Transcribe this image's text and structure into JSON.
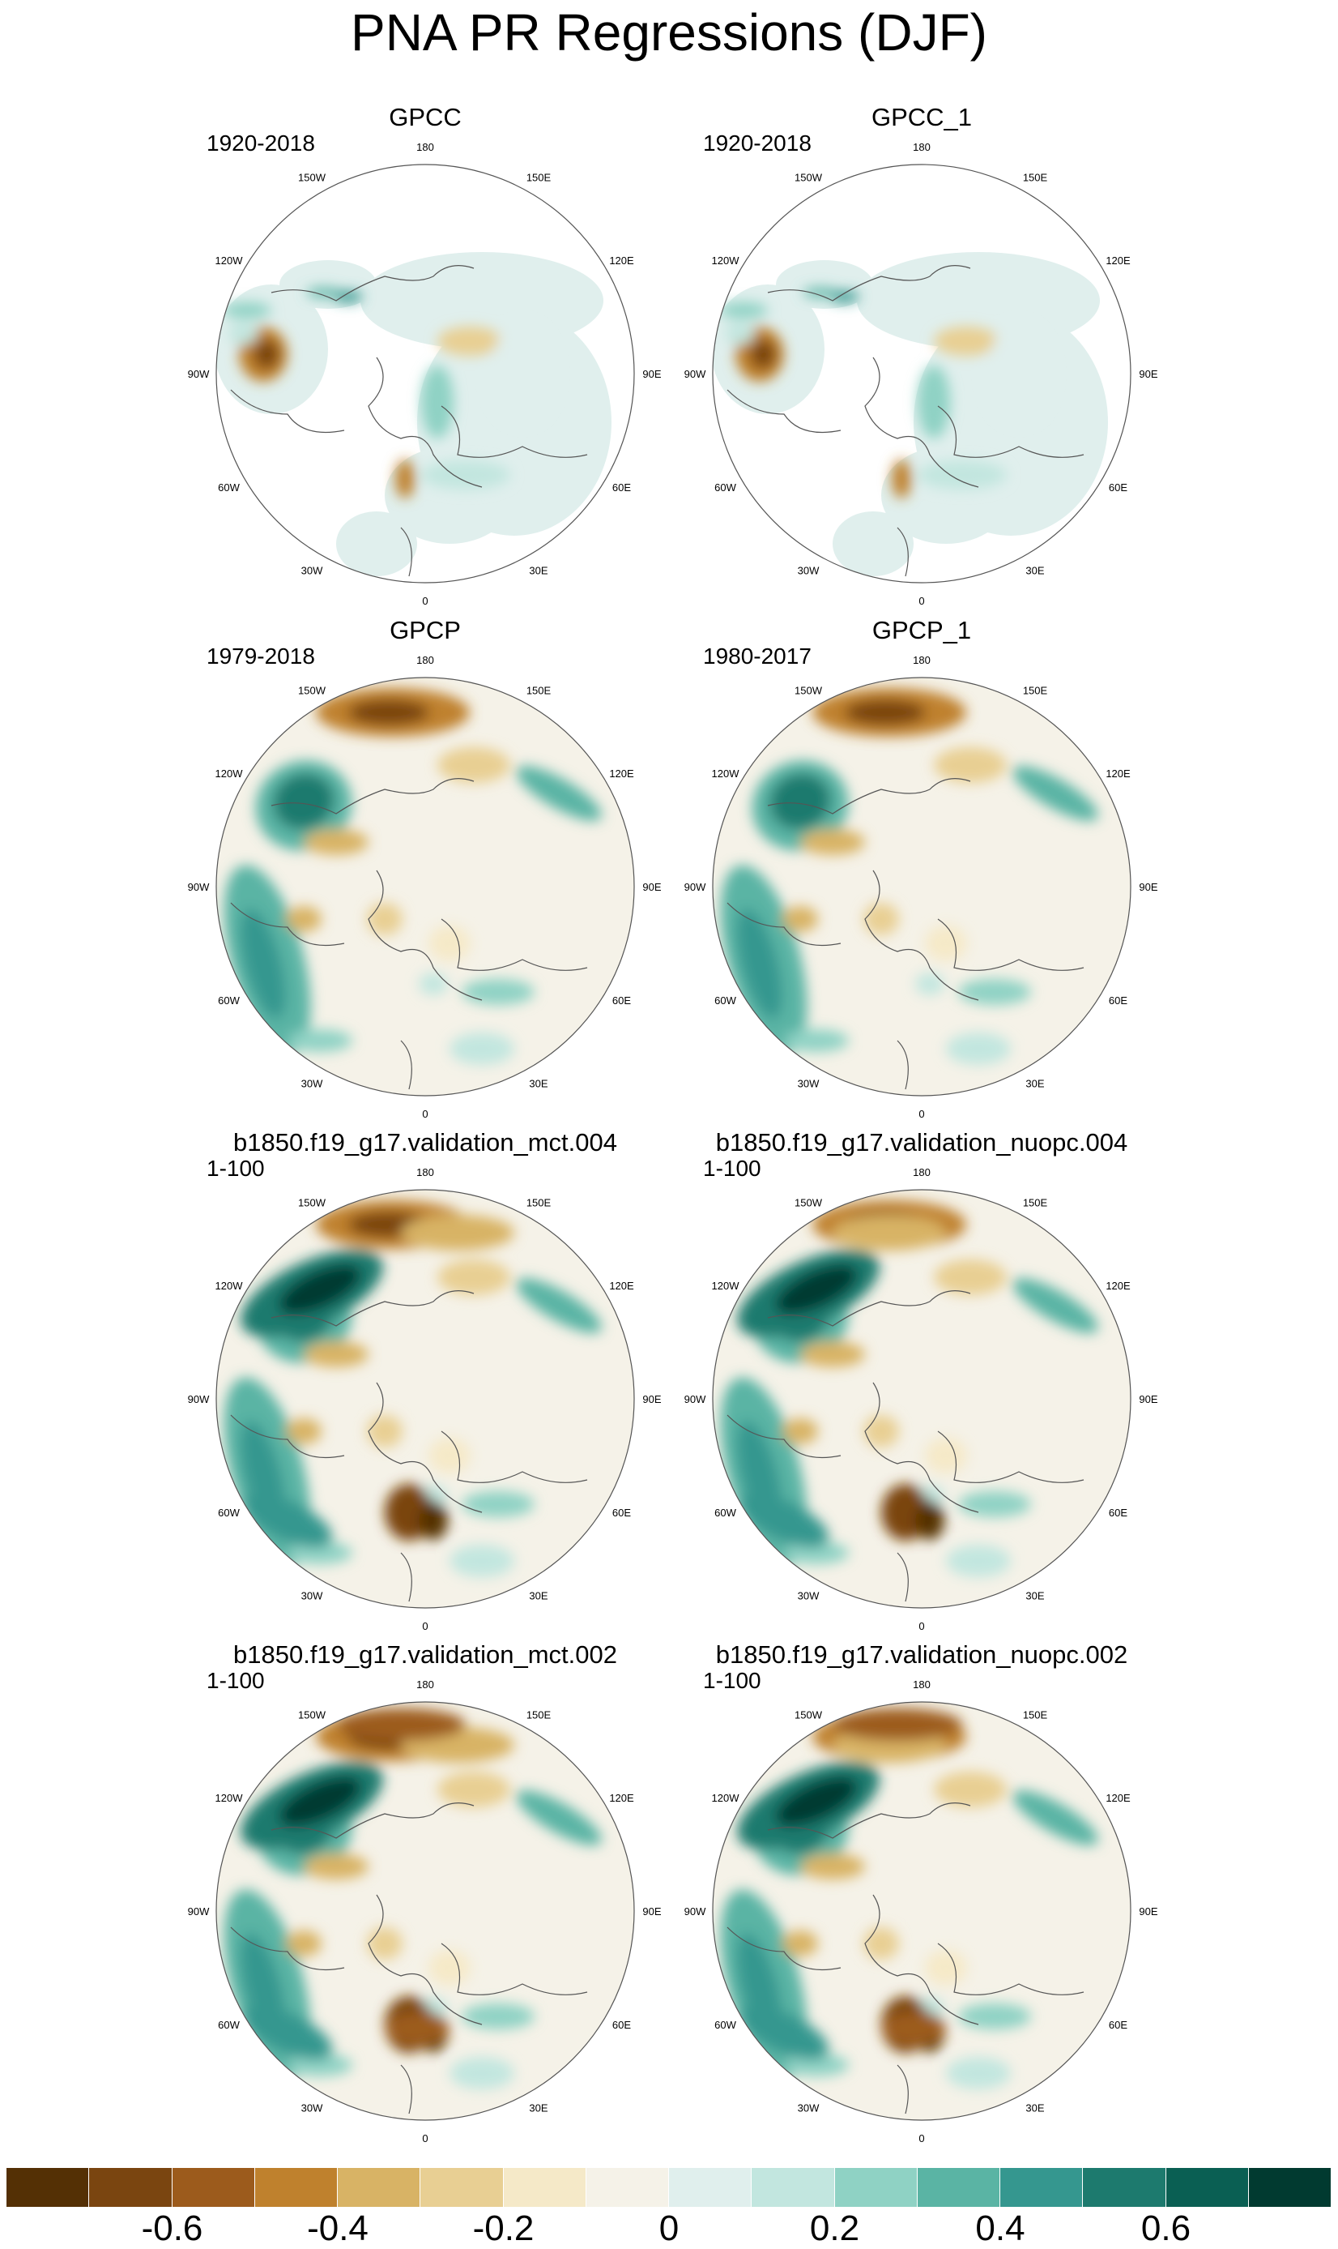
{
  "title": "PNA PR Regressions (DJF)",
  "lon_labels": [
    "180",
    "150E",
    "120E",
    "90E",
    "60E",
    "30E",
    "0",
    "30W",
    "60W",
    "90W",
    "120W",
    "150W"
  ],
  "panels": [
    {
      "title": "GPCC",
      "years": "1920-2018",
      "coverage": "land"
    },
    {
      "title": "GPCC_1",
      "years": "1920-2018",
      "coverage": "land"
    },
    {
      "title": "GPCP",
      "years": "1979-2018",
      "coverage": "full"
    },
    {
      "title": "GPCP_1",
      "years": "1980-2017",
      "coverage": "full"
    },
    {
      "title": "b1850.f19_g17.validation_mct.004",
      "years": "1-100",
      "coverage": "full"
    },
    {
      "title": "b1850.f19_g17.validation_nuopc.004",
      "years": "1-100",
      "coverage": "full"
    },
    {
      "title": "b1850.f19_g17.validation_mct.002",
      "years": "1-100",
      "coverage": "full"
    },
    {
      "title": "b1850.f19_g17.validation_nuopc.002",
      "years": "1-100",
      "coverage": "full"
    }
  ],
  "colorbar": {
    "colors": [
      "#543005",
      "#7a4510",
      "#9c5b1c",
      "#bf812d",
      "#d8b365",
      "#e8cf93",
      "#f5e9c8",
      "#f5f2e8",
      "#e0efed",
      "#c2e6df",
      "#8fd2c4",
      "#5ab4a4",
      "#35978f",
      "#1d7a6e",
      "#0a5f53",
      "#013a30"
    ],
    "tick_labels": [
      "-0.6",
      "-0.4",
      "-0.2",
      "0",
      "0.2",
      "0.4",
      "0.6"
    ],
    "tick_values": [
      -0.6,
      -0.4,
      -0.2,
      0,
      0.2,
      0.4,
      0.6
    ],
    "min": -0.8,
    "max": 0.8
  }
}
